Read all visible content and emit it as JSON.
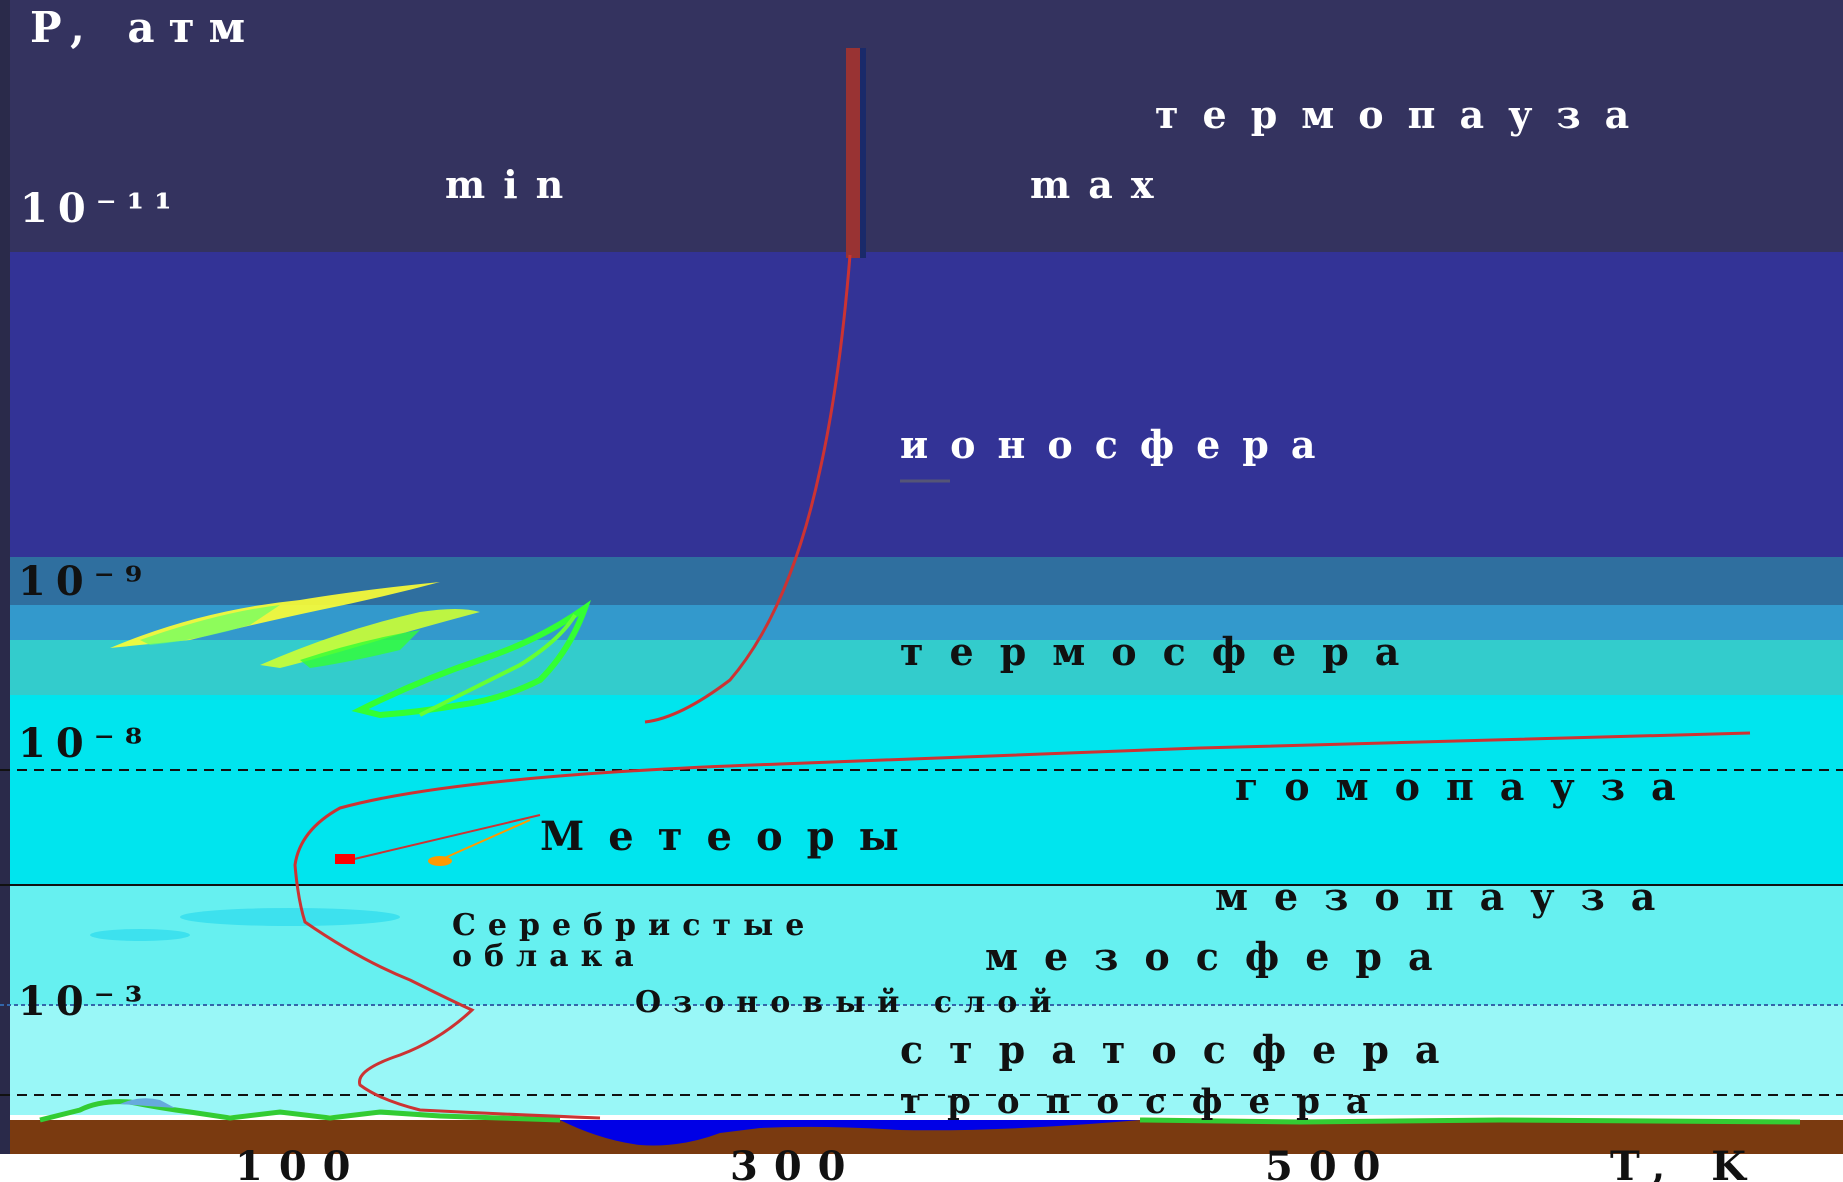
{
  "axis": {
    "y_label": "P, атм",
    "x_label": "T, K",
    "y_ticks": [
      "10⁻¹¹",
      "10⁻⁹",
      "10⁻⁸",
      "10⁻³"
    ],
    "x_ticks": [
      "100",
      "300",
      "500"
    ]
  },
  "layers": {
    "thermopause": "термопауза",
    "ionosphere": "ионосфера",
    "thermosphere": "термосфера",
    "homopause": "гомопауза",
    "mesopause": "мезопауза",
    "mesosphere": "мезосфера",
    "ozone": "Озоновый слой",
    "stratosphere": "стратосфера",
    "troposphere": "тропосфера"
  },
  "labels": {
    "min": "min",
    "max": "max",
    "meteors": "Метеоры",
    "clouds_line1": "Серебристые",
    "clouds_line2": "облака"
  },
  "colors": {
    "thermopause_band": "#34335f",
    "ionosphere_band": "#333396",
    "thermosphere_top": "#2f6f9f",
    "thermosphere_mid": "#3399cc",
    "thermosphere_low": "#33cccc",
    "upper_cyan": "#00e5ee",
    "mesosphere_band": "#66f0f0",
    "stratosphere_band": "#99f7f7",
    "ground": "#7a3a10",
    "ocean": "#0000e6",
    "temperature_curve": "#cc3333",
    "aurora_yellow": "#ffff33",
    "aurora_green": "#33ff33"
  }
}
